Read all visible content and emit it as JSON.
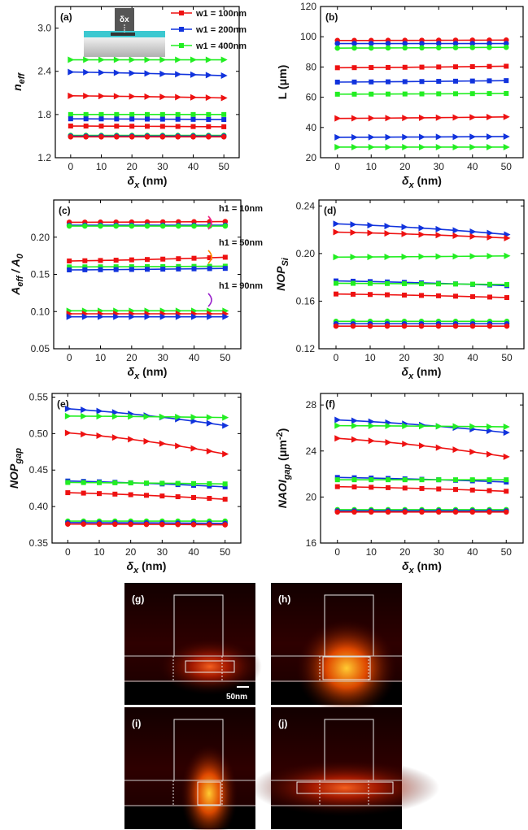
{
  "colors": {
    "w100": "#ee1111",
    "w200": "#1133dd",
    "w400": "#22ee22"
  },
  "legend": [
    {
      "key": "w100",
      "text": "w1 = 100nm",
      "marker": "sq"
    },
    {
      "key": "w200",
      "text": "w1 = 200nm",
      "marker": "sq"
    },
    {
      "key": "w400",
      "text": "w1 = 400nm",
      "marker": "sq"
    }
  ],
  "h_labels": [
    "h1 = 10nm",
    "h1 = 50nm",
    "h1 = 90nm"
  ],
  "field_panels": [
    {
      "label": "(g)",
      "scale_text": "50nm"
    },
    {
      "label": "(h)"
    },
    {
      "label": "(i)"
    },
    {
      "label": "(j)"
    }
  ],
  "chart_data": [
    {
      "panel": "(a)",
      "type": "line",
      "ylabel": "neff",
      "xlabel": "δx (nm)",
      "x": [
        0,
        5,
        10,
        15,
        20,
        25,
        30,
        35,
        40,
        45,
        50
      ],
      "xlim": [
        -5,
        55
      ],
      "xticks": [
        0,
        10,
        20,
        30,
        40,
        50
      ],
      "ylim": [
        1.2,
        3.3
      ],
      "yticks": [
        "1.2",
        "1.8",
        "2.4",
        "3.0"
      ],
      "yticks_v": [
        1.2,
        1.8,
        2.4,
        3.0
      ],
      "series": [
        {
          "color": "w400",
          "marker": "tri",
          "start": 2.56,
          "end": 2.56
        },
        {
          "color": "w200",
          "marker": "tri",
          "start": 2.39,
          "end": 2.34
        },
        {
          "color": "w100",
          "marker": "tri",
          "start": 2.06,
          "end": 2.03
        },
        {
          "color": "w400",
          "marker": "sq",
          "start": 1.8,
          "end": 1.8
        },
        {
          "color": "w200",
          "marker": "sq",
          "start": 1.74,
          "end": 1.73
        },
        {
          "color": "w100",
          "marker": "sq",
          "start": 1.64,
          "end": 1.63
        },
        {
          "color": "w400",
          "marker": "circ",
          "start": 1.51,
          "end": 1.51
        },
        {
          "color": "w200",
          "marker": "circ",
          "start": 1.5,
          "end": 1.5
        },
        {
          "color": "w100",
          "marker": "circ",
          "start": 1.49,
          "end": 1.49
        }
      ]
    },
    {
      "panel": "(b)",
      "type": "line",
      "ylabel": "L (μm)",
      "xlabel": "δx (nm)",
      "x": [
        0,
        5,
        10,
        15,
        20,
        25,
        30,
        35,
        40,
        45,
        50
      ],
      "xlim": [
        -5,
        55
      ],
      "xticks": [
        0,
        10,
        20,
        30,
        40,
        50
      ],
      "ylim": [
        20,
        120
      ],
      "yticks": [
        "20",
        "40",
        "60",
        "80",
        "100",
        "120"
      ],
      "yticks_v": [
        20,
        40,
        60,
        80,
        100,
        120
      ],
      "series": [
        {
          "color": "w100",
          "marker": "circ",
          "start": 97.5,
          "end": 97.8
        },
        {
          "color": "w200",
          "marker": "circ",
          "start": 95.5,
          "end": 95.5
        },
        {
          "color": "w400",
          "marker": "circ",
          "start": 92.5,
          "end": 93.0
        },
        {
          "color": "w100",
          "marker": "sq",
          "start": 79.5,
          "end": 80.5
        },
        {
          "color": "w200",
          "marker": "sq",
          "start": 70.0,
          "end": 71.0
        },
        {
          "color": "w400",
          "marker": "sq",
          "start": 62.0,
          "end": 62.5
        },
        {
          "color": "w100",
          "marker": "tri",
          "start": 46.0,
          "end": 47.0
        },
        {
          "color": "w200",
          "marker": "tri",
          "start": 33.5,
          "end": 34.0
        },
        {
          "color": "w400",
          "marker": "tri",
          "start": 27.0,
          "end": 27.0
        }
      ]
    },
    {
      "panel": "(c)",
      "type": "line",
      "ylabel": "Aeff / A0",
      "xlabel": "δx (nm)",
      "x": [
        0,
        5,
        10,
        15,
        20,
        25,
        30,
        35,
        40,
        45,
        50
      ],
      "xlim": [
        -5,
        55
      ],
      "xticks": [
        0,
        10,
        20,
        30,
        40,
        50
      ],
      "ylim": [
        0.05,
        0.25
      ],
      "yticks": [
        "0.05",
        "0.10",
        "0.15",
        "0.20"
      ],
      "yticks_v": [
        0.05,
        0.1,
        0.15,
        0.2
      ],
      "series": [
        {
          "color": "w100",
          "marker": "circ",
          "start": 0.22,
          "end": 0.221
        },
        {
          "color": "w200",
          "marker": "circ",
          "start": 0.216,
          "end": 0.216
        },
        {
          "color": "w400",
          "marker": "circ",
          "start": 0.215,
          "end": 0.215
        },
        {
          "color": "w100",
          "marker": "sq",
          "start": 0.168,
          "end": 0.173
        },
        {
          "color": "w400",
          "marker": "sq",
          "start": 0.16,
          "end": 0.161
        },
        {
          "color": "w200",
          "marker": "sq",
          "start": 0.156,
          "end": 0.158
        },
        {
          "color": "w400",
          "marker": "tri",
          "start": 0.101,
          "end": 0.101
        },
        {
          "color": "w100",
          "marker": "tri",
          "start": 0.097,
          "end": 0.097
        },
        {
          "color": "w200",
          "marker": "tri",
          "start": 0.093,
          "end": 0.093
        }
      ]
    },
    {
      "panel": "(d)",
      "type": "line",
      "ylabel": "NOPSi",
      "xlabel": "δx (nm)",
      "x": [
        0,
        5,
        10,
        15,
        20,
        25,
        30,
        35,
        40,
        45,
        50
      ],
      "xlim": [
        -5,
        55
      ],
      "xticks": [
        0,
        10,
        20,
        30,
        40,
        50
      ],
      "ylim": [
        0.12,
        0.245
      ],
      "yticks": [
        "0.12",
        "0.16",
        "0.20",
        "0.24"
      ],
      "yticks_v": [
        0.12,
        0.16,
        0.2,
        0.24
      ],
      "series": [
        {
          "color": "w200",
          "marker": "tri",
          "start": 0.225,
          "end": 0.216
        },
        {
          "color": "w100",
          "marker": "tri",
          "start": 0.218,
          "end": 0.213
        },
        {
          "color": "w400",
          "marker": "tri",
          "start": 0.197,
          "end": 0.198
        },
        {
          "color": "w200",
          "marker": "sq",
          "start": 0.177,
          "end": 0.173
        },
        {
          "color": "w400",
          "marker": "sq",
          "start": 0.175,
          "end": 0.174
        },
        {
          "color": "w100",
          "marker": "sq",
          "start": 0.166,
          "end": 0.163
        },
        {
          "color": "w400",
          "marker": "circ",
          "start": 0.143,
          "end": 0.143
        },
        {
          "color": "w200",
          "marker": "circ",
          "start": 0.141,
          "end": 0.141
        },
        {
          "color": "w100",
          "marker": "circ",
          "start": 0.139,
          "end": 0.139
        }
      ]
    },
    {
      "panel": "(e)",
      "type": "line",
      "ylabel": "NOPgap",
      "xlabel": "δx (nm)",
      "x": [
        0,
        5,
        10,
        15,
        20,
        25,
        30,
        35,
        40,
        45,
        50
      ],
      "xlim": [
        -5,
        55
      ],
      "xticks": [
        0,
        10,
        20,
        30,
        40,
        50
      ],
      "ylim": [
        0.35,
        0.555
      ],
      "yticks": [
        "0.35",
        "0.40",
        "0.45",
        "0.50",
        "0.55"
      ],
      "yticks_v": [
        0.35,
        0.4,
        0.45,
        0.5,
        0.55
      ],
      "series": [
        {
          "color": "w200",
          "marker": "tri",
          "start": 0.534,
          "end": 0.511
        },
        {
          "color": "w400",
          "marker": "tri",
          "start": 0.524,
          "end": 0.522
        },
        {
          "color": "w100",
          "marker": "tri",
          "start": 0.501,
          "end": 0.472
        },
        {
          "color": "w200",
          "marker": "sq",
          "start": 0.435,
          "end": 0.427
        },
        {
          "color": "w400",
          "marker": "sq",
          "start": 0.433,
          "end": 0.431
        },
        {
          "color": "w100",
          "marker": "sq",
          "start": 0.419,
          "end": 0.41
        },
        {
          "color": "w400",
          "marker": "circ",
          "start": 0.38,
          "end": 0.38
        },
        {
          "color": "w200",
          "marker": "circ",
          "start": 0.378,
          "end": 0.377
        },
        {
          "color": "w100",
          "marker": "circ",
          "start": 0.376,
          "end": 0.375
        }
      ]
    },
    {
      "panel": "(f)",
      "type": "line",
      "ylabel": "NAOIgap (μm-2)",
      "xlabel": "δx (nm)",
      "x": [
        0,
        5,
        10,
        15,
        20,
        25,
        30,
        35,
        40,
        45,
        50
      ],
      "xlim": [
        -5,
        55
      ],
      "xticks": [
        0,
        10,
        20,
        30,
        40,
        50
      ],
      "ylim": [
        16,
        29
      ],
      "yticks": [
        "16",
        "20",
        "24",
        "28"
      ],
      "yticks_v": [
        16,
        20,
        24,
        28
      ],
      "series": [
        {
          "color": "w200",
          "marker": "tri",
          "start": 26.7,
          "end": 25.6
        },
        {
          "color": "w400",
          "marker": "tri",
          "start": 26.2,
          "end": 26.1
        },
        {
          "color": "w100",
          "marker": "tri",
          "start": 25.1,
          "end": 23.5
        },
        {
          "color": "w200",
          "marker": "sq",
          "start": 21.7,
          "end": 21.3
        },
        {
          "color": "w400",
          "marker": "sq",
          "start": 21.5,
          "end": 21.5
        },
        {
          "color": "w100",
          "marker": "sq",
          "start": 20.9,
          "end": 20.5
        },
        {
          "color": "w400",
          "marker": "circ",
          "start": 18.9,
          "end": 18.9
        },
        {
          "color": "w200",
          "marker": "circ",
          "start": 18.8,
          "end": 18.8
        },
        {
          "color": "w100",
          "marker": "circ",
          "start": 18.7,
          "end": 18.7
        }
      ]
    }
  ]
}
